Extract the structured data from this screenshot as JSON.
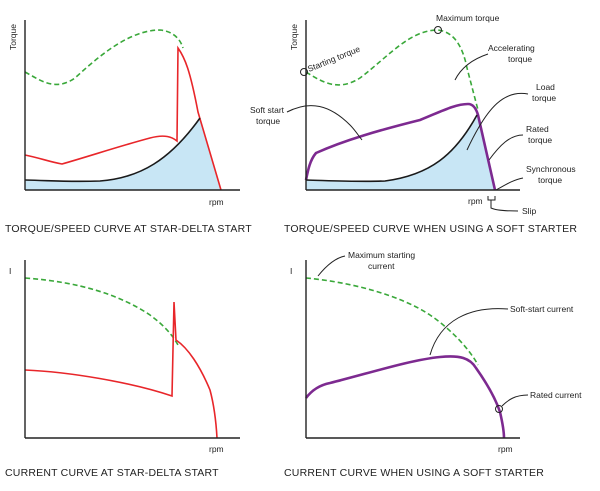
{
  "colors": {
    "fill": "#c8e6f5",
    "red": "#e8262a",
    "green": "#3aa83a",
    "purple": "#7d2a90",
    "black": "#1a1a1a"
  },
  "panels": {
    "tl": {
      "ylabel": "Torque",
      "xlabel": "rpm",
      "caption": "TORQUE/SPEED CURVE AT STAR-DELTA START"
    },
    "tr": {
      "ylabel": "Torque",
      "xlabel": "rpm",
      "caption": "TORQUE/SPEED CURVE WHEN USING A SOFT STARTER",
      "labels": {
        "max_torque": "Maximum torque",
        "starting_torque": "Starting torque",
        "accel_1": "Accelerating",
        "accel_2": "torque",
        "soft_1": "Soft start",
        "soft_2": "torque",
        "load_1": "Load",
        "load_2": "torque",
        "rated_1": "Rated",
        "rated_2": "torque",
        "sync_1": "Synchronous",
        "sync_2": "torque",
        "slip": "Slip"
      }
    },
    "bl": {
      "ylabel": "I",
      "xlabel": "rpm",
      "caption": "CURRENT CURVE AT STAR-DELTA START"
    },
    "br": {
      "ylabel": "I",
      "xlabel": "rpm",
      "caption": "CURRENT CURVE WHEN USING A SOFT STARTER",
      "labels": {
        "max_start_1": "Maximum starting",
        "max_start_2": "current",
        "soft_current": "Soft-start current",
        "rated_current": "Rated current"
      }
    }
  }
}
